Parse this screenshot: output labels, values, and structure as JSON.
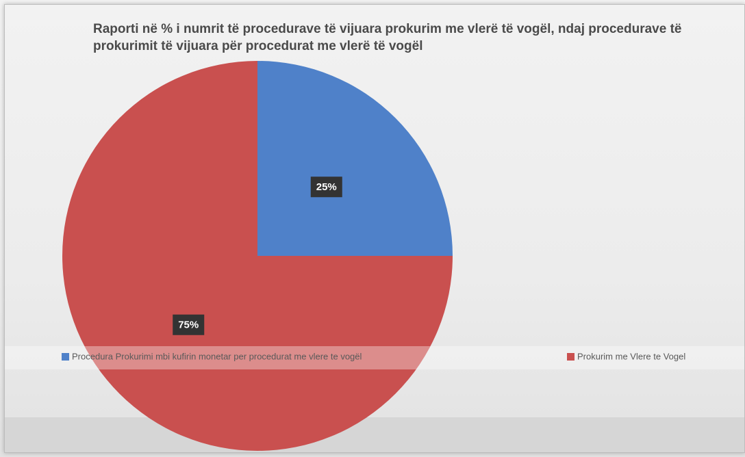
{
  "chart_data": {
    "type": "pie",
    "title": "Raporti në % i numrit të procedurave të vijuara prokurim me vlerë të vogël, ndaj procedurave të prokurimit të vijuara për procedurat me vlerë të vogël",
    "categories": [
      "Procedura Prokurimi mbi kufirin monetar per procedurat me vlere te vogël",
      "Prokurim me Vlere te Vogel"
    ],
    "values": [
      25,
      75
    ],
    "value_labels": [
      "25%",
      "75%"
    ],
    "colors": [
      "#4f81c9",
      "#c9504f"
    ]
  }
}
